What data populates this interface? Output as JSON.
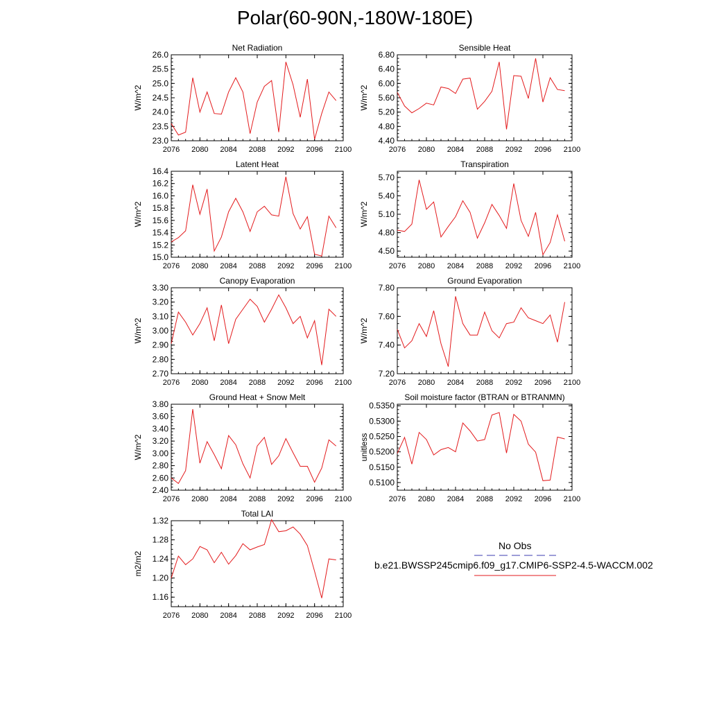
{
  "figure": {
    "title": "Polar(60-90N,-180W-180E)"
  },
  "legend": {
    "obs_label": "No Obs",
    "obs_color": "#3b3bb0",
    "model_label": "b.e21.BWSSP245cmip6.f09_g17.CMIP6-SSP2-4.5-WACCM.002",
    "model_color": "#e31a1c"
  },
  "chart_data": [
    {
      "type": "line",
      "title": "Net Radiation",
      "ylabel": "W/m^2",
      "xlim": [
        2076,
        2100
      ],
      "xticks": [
        "2076",
        "2080",
        "2084",
        "2088",
        "2092",
        "2096",
        "2100"
      ],
      "ylim": [
        23.0,
        26.0
      ],
      "yticks": [
        "23.0",
        "23.5",
        "24.0",
        "24.5",
        "25.0",
        "25.5",
        "26.0"
      ],
      "x": [
        2076,
        2077,
        2078,
        2079,
        2080,
        2081,
        2082,
        2083,
        2084,
        2085,
        2086,
        2087,
        2088,
        2089,
        2090,
        2091,
        2092,
        2093,
        2094,
        2095,
        2096,
        2097,
        2098,
        2099
      ],
      "series": [
        {
          "name": "b.e21.BWSSP245cmip6.f09_g17.CMIP6-SSP2-4.5-WACCM.002",
          "values": [
            23.6,
            23.2,
            23.3,
            25.2,
            24.0,
            24.7,
            23.95,
            23.93,
            24.7,
            25.2,
            24.7,
            23.25,
            24.35,
            24.9,
            25.1,
            23.3,
            25.75,
            24.95,
            23.82,
            25.15,
            23.05,
            23.95,
            24.7,
            24.4
          ]
        }
      ]
    },
    {
      "type": "line",
      "title": "Sensible Heat",
      "ylabel": "W/m^2",
      "xlim": [
        2076,
        2100
      ],
      "xticks": [
        "2076",
        "2080",
        "2084",
        "2088",
        "2092",
        "2096",
        "2100"
      ],
      "ylim": [
        4.4,
        6.8
      ],
      "yticks": [
        "4.40",
        "4.80",
        "5.20",
        "5.60",
        "6.00",
        "6.40",
        "6.80"
      ],
      "x": [
        2076,
        2077,
        2078,
        2079,
        2080,
        2081,
        2082,
        2083,
        2084,
        2085,
        2086,
        2087,
        2088,
        2089,
        2090,
        2091,
        2092,
        2093,
        2094,
        2095,
        2096,
        2097,
        2098,
        2099
      ],
      "series": [
        {
          "name": "b.e21.BWSSP245cmip6.f09_g17.CMIP6-SSP2-4.5-WACCM.002",
          "values": [
            5.75,
            5.37,
            5.18,
            5.3,
            5.45,
            5.4,
            5.9,
            5.86,
            5.72,
            6.12,
            6.15,
            5.28,
            5.5,
            5.78,
            6.6,
            4.72,
            6.22,
            6.2,
            5.58,
            6.7,
            5.48,
            6.16,
            5.83,
            5.8
          ]
        }
      ]
    },
    {
      "type": "line",
      "title": "Latent Heat",
      "ylabel": "W/m^2",
      "xlim": [
        2076,
        2100
      ],
      "xticks": [
        "2076",
        "2080",
        "2084",
        "2088",
        "2092",
        "2096",
        "2100"
      ],
      "ylim": [
        15.0,
        16.4
      ],
      "yticks": [
        "15.0",
        "15.2",
        "15.4",
        "15.6",
        "15.8",
        "16.0",
        "16.2",
        "16.4"
      ],
      "x": [
        2076,
        2077,
        2078,
        2079,
        2080,
        2081,
        2082,
        2083,
        2084,
        2085,
        2086,
        2087,
        2088,
        2089,
        2090,
        2091,
        2092,
        2093,
        2094,
        2095,
        2096,
        2097,
        2098,
        2099
      ],
      "series": [
        {
          "name": "b.e21.BWSSP245cmip6.f09_g17.CMIP6-SSP2-4.5-WACCM.002",
          "values": [
            15.25,
            15.32,
            15.43,
            16.18,
            15.7,
            16.11,
            15.1,
            15.33,
            15.74,
            15.96,
            15.74,
            15.42,
            15.74,
            15.83,
            15.69,
            15.67,
            16.31,
            15.71,
            15.46,
            15.66,
            15.05,
            15.02,
            15.67,
            15.48
          ]
        }
      ]
    },
    {
      "type": "line",
      "title": "Transpiration",
      "ylabel": "W/m^2",
      "xlim": [
        2076,
        2100
      ],
      "xticks": [
        "2076",
        "2080",
        "2084",
        "2088",
        "2092",
        "2096",
        "2100"
      ],
      "ylim": [
        4.4,
        5.8
      ],
      "yticks": [
        "4.50",
        "4.80",
        "5.10",
        "5.40",
        "5.70"
      ],
      "x": [
        2076,
        2077,
        2078,
        2079,
        2080,
        2081,
        2082,
        2083,
        2084,
        2085,
        2086,
        2087,
        2088,
        2089,
        2090,
        2091,
        2092,
        2093,
        2094,
        2095,
        2096,
        2097,
        2098,
        2099
      ],
      "series": [
        {
          "name": "b.e21.BWSSP245cmip6.f09_g17.CMIP6-SSP2-4.5-WACCM.002",
          "values": [
            4.84,
            4.82,
            4.94,
            5.66,
            5.18,
            5.3,
            4.73,
            4.9,
            5.06,
            5.32,
            5.13,
            4.71,
            4.96,
            5.26,
            5.08,
            4.87,
            5.6,
            5.0,
            4.74,
            5.13,
            4.44,
            4.64,
            5.09,
            4.66
          ]
        }
      ]
    },
    {
      "type": "line",
      "title": "Canopy Evaporation",
      "ylabel": "W/m^2",
      "xlim": [
        2076,
        2100
      ],
      "xticks": [
        "2076",
        "2080",
        "2084",
        "2088",
        "2092",
        "2096",
        "2100"
      ],
      "ylim": [
        2.7,
        3.3
      ],
      "yticks": [
        "2.70",
        "2.80",
        "2.90",
        "3.00",
        "3.10",
        "3.20",
        "3.30"
      ],
      "x": [
        2076,
        2077,
        2078,
        2079,
        2080,
        2081,
        2082,
        2083,
        2084,
        2085,
        2086,
        2087,
        2088,
        2089,
        2090,
        2091,
        2092,
        2093,
        2094,
        2095,
        2096,
        2097,
        2098,
        2099
      ],
      "series": [
        {
          "name": "b.e21.BWSSP245cmip6.f09_g17.CMIP6-SSP2-4.5-WACCM.002",
          "values": [
            2.91,
            3.13,
            3.06,
            2.97,
            3.05,
            3.16,
            2.93,
            3.18,
            2.91,
            3.08,
            3.15,
            3.22,
            3.17,
            3.06,
            3.15,
            3.25,
            3.16,
            3.05,
            3.1,
            2.95,
            3.07,
            2.76,
            3.15,
            3.1
          ]
        }
      ]
    },
    {
      "type": "line",
      "title": "Ground Evaporation",
      "ylabel": "W/m^2",
      "xlim": [
        2076,
        2100
      ],
      "xticks": [
        "2076",
        "2080",
        "2084",
        "2088",
        "2092",
        "2096",
        "2100"
      ],
      "ylim": [
        7.2,
        7.8
      ],
      "yticks": [
        "7.20",
        "7.40",
        "7.60",
        "7.80"
      ],
      "x": [
        2076,
        2077,
        2078,
        2079,
        2080,
        2081,
        2082,
        2083,
        2084,
        2085,
        2086,
        2087,
        2088,
        2089,
        2090,
        2091,
        2092,
        2093,
        2094,
        2095,
        2096,
        2097,
        2098,
        2099
      ],
      "series": [
        {
          "name": "b.e21.BWSSP245cmip6.f09_g17.CMIP6-SSP2-4.5-WACCM.002",
          "values": [
            7.51,
            7.38,
            7.43,
            7.55,
            7.46,
            7.64,
            7.41,
            7.25,
            7.74,
            7.55,
            7.47,
            7.47,
            7.63,
            7.5,
            7.45,
            7.55,
            7.56,
            7.66,
            7.59,
            7.57,
            7.55,
            7.61,
            7.42,
            7.7
          ]
        }
      ]
    },
    {
      "type": "line",
      "title": "Ground Heat + Snow Melt",
      "ylabel": "W/m^2",
      "xlim": [
        2076,
        2100
      ],
      "xticks": [
        "2076",
        "2080",
        "2084",
        "2088",
        "2092",
        "2096",
        "2100"
      ],
      "ylim": [
        2.4,
        3.8
      ],
      "yticks": [
        "2.40",
        "2.60",
        "2.80",
        "3.00",
        "3.20",
        "3.40",
        "3.60",
        "3.80"
      ],
      "x": [
        2076,
        2077,
        2078,
        2079,
        2080,
        2081,
        2082,
        2083,
        2084,
        2085,
        2086,
        2087,
        2088,
        2089,
        2090,
        2091,
        2092,
        2093,
        2094,
        2095,
        2096,
        2097,
        2098,
        2099
      ],
      "series": [
        {
          "name": "b.e21.BWSSP245cmip6.f09_g17.CMIP6-SSP2-4.5-WACCM.002",
          "values": [
            2.6,
            2.51,
            2.72,
            3.72,
            2.84,
            3.19,
            2.98,
            2.75,
            3.29,
            3.14,
            2.83,
            2.6,
            3.12,
            3.26,
            2.82,
            2.96,
            3.24,
            3.01,
            2.79,
            2.79,
            2.53,
            2.76,
            3.22,
            3.12
          ]
        }
      ]
    },
    {
      "type": "line",
      "title": "Soil moisture factor (BTRAN or BTRANMN)",
      "ylabel": "unitless",
      "xlim": [
        2076,
        2100
      ],
      "xticks": [
        "2076",
        "2080",
        "2084",
        "2088",
        "2092",
        "2096",
        "2100"
      ],
      "ylim": [
        0.5075,
        0.5355
      ],
      "yticks": [
        "0.5100",
        "0.5150",
        "0.5200",
        "0.5250",
        "0.5300",
        "0.5350"
      ],
      "x": [
        2076,
        2077,
        2078,
        2079,
        2080,
        2081,
        2082,
        2083,
        2084,
        2085,
        2086,
        2087,
        2088,
        2089,
        2090,
        2091,
        2092,
        2093,
        2094,
        2095,
        2096,
        2097,
        2098,
        2099
      ],
      "series": [
        {
          "name": "b.e21.BWSSP245cmip6.f09_g17.CMIP6-SSP2-4.5-WACCM.002",
          "values": [
            0.5195,
            0.5247,
            0.516,
            0.5263,
            0.524,
            0.519,
            0.5207,
            0.5214,
            0.52,
            0.5294,
            0.5268,
            0.5235,
            0.524,
            0.532,
            0.5328,
            0.5196,
            0.5322,
            0.53,
            0.5225,
            0.5199,
            0.5106,
            0.5108,
            0.5248,
            0.5242
          ]
        }
      ]
    },
    {
      "type": "line",
      "title": "Total LAI",
      "ylabel": "m2/m2",
      "xlim": [
        2076,
        2100
      ],
      "xticks": [
        "2076",
        "2080",
        "2084",
        "2088",
        "2092",
        "2096",
        "2100"
      ],
      "ylim": [
        1.14,
        1.32
      ],
      "yticks": [
        "1.16",
        "1.20",
        "1.24",
        "1.28",
        "1.32"
      ],
      "x": [
        2076,
        2077,
        2078,
        2079,
        2080,
        2081,
        2082,
        2083,
        2084,
        2085,
        2086,
        2087,
        2088,
        2089,
        2090,
        2091,
        2092,
        2093,
        2094,
        2095,
        2096,
        2097,
        2098,
        2099
      ],
      "series": [
        {
          "name": "b.e21.BWSSP245cmip6.f09_g17.CMIP6-SSP2-4.5-WACCM.002",
          "values": [
            1.2,
            1.246,
            1.228,
            1.24,
            1.266,
            1.259,
            1.232,
            1.254,
            1.229,
            1.247,
            1.272,
            1.259,
            1.265,
            1.27,
            1.322,
            1.297,
            1.299,
            1.307,
            1.292,
            1.268,
            1.214,
            1.158,
            1.24,
            1.238
          ]
        }
      ]
    }
  ]
}
